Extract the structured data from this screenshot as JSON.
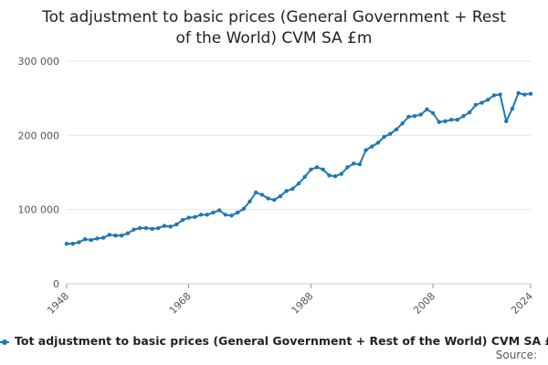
{
  "chart_data": {
    "type": "line",
    "title_lines": [
      "Tot adjustment to basic prices (General Government + Rest",
      "of the World) CVM SA £m"
    ],
    "x": [
      1948,
      1949,
      1950,
      1951,
      1952,
      1953,
      1954,
      1955,
      1956,
      1957,
      1958,
      1959,
      1960,
      1961,
      1962,
      1963,
      1964,
      1965,
      1966,
      1967,
      1968,
      1969,
      1970,
      1971,
      1972,
      1973,
      1974,
      1975,
      1976,
      1977,
      1978,
      1979,
      1980,
      1981,
      1982,
      1983,
      1984,
      1985,
      1986,
      1987,
      1988,
      1989,
      1990,
      1991,
      1992,
      1993,
      1994,
      1995,
      1996,
      1997,
      1998,
      1999,
      2000,
      2001,
      2002,
      2003,
      2004,
      2005,
      2006,
      2007,
      2008,
      2009,
      2010,
      2011,
      2012,
      2013,
      2014,
      2015,
      2016,
      2017,
      2018,
      2019,
      2020,
      2021,
      2022,
      2023,
      2024
    ],
    "series": [
      {
        "name": "Tot adjustment to basic prices (General Government + Rest of the World) CVM SA £m",
        "color": "#1f77b4",
        "values": [
          54000,
          54000,
          56000,
          60000,
          59000,
          61000,
          62000,
          66000,
          65000,
          65000,
          68000,
          73000,
          75000,
          75000,
          74000,
          75000,
          78000,
          77000,
          80000,
          86000,
          89000,
          90000,
          93000,
          93000,
          96000,
          99000,
          93000,
          92000,
          96000,
          101000,
          111000,
          123000,
          120000,
          115000,
          113000,
          118000,
          125000,
          128000,
          135000,
          144000,
          154000,
          157000,
          154000,
          146000,
          145000,
          148000,
          157000,
          162000,
          161000,
          180000,
          185000,
          190000,
          198000,
          202000,
          208000,
          216000,
          225000,
          226000,
          228000,
          235000,
          230000,
          218000,
          219000,
          221000,
          221000,
          226000,
          231000,
          241000,
          244000,
          248000,
          254000,
          255000,
          219000,
          236000,
          257000,
          255000,
          256000
        ]
      }
    ],
    "ylim": [
      0,
      300000
    ],
    "yticks": [
      0,
      100000,
      200000,
      300000
    ],
    "ytick_labels": [
      "0",
      "100 000",
      "200 000",
      "300 000"
    ],
    "xticks": [
      1948,
      1968,
      1988,
      2008,
      2024
    ],
    "xtick_labels": [
      "1948",
      "1968",
      "1988",
      "2008",
      "2024"
    ],
    "grid": true,
    "legend_position": "bottom-left"
  },
  "legend_label": "Tot adjustment to basic prices (General Government + Rest of the World) CVM SA £m",
  "source_label": "Source:"
}
